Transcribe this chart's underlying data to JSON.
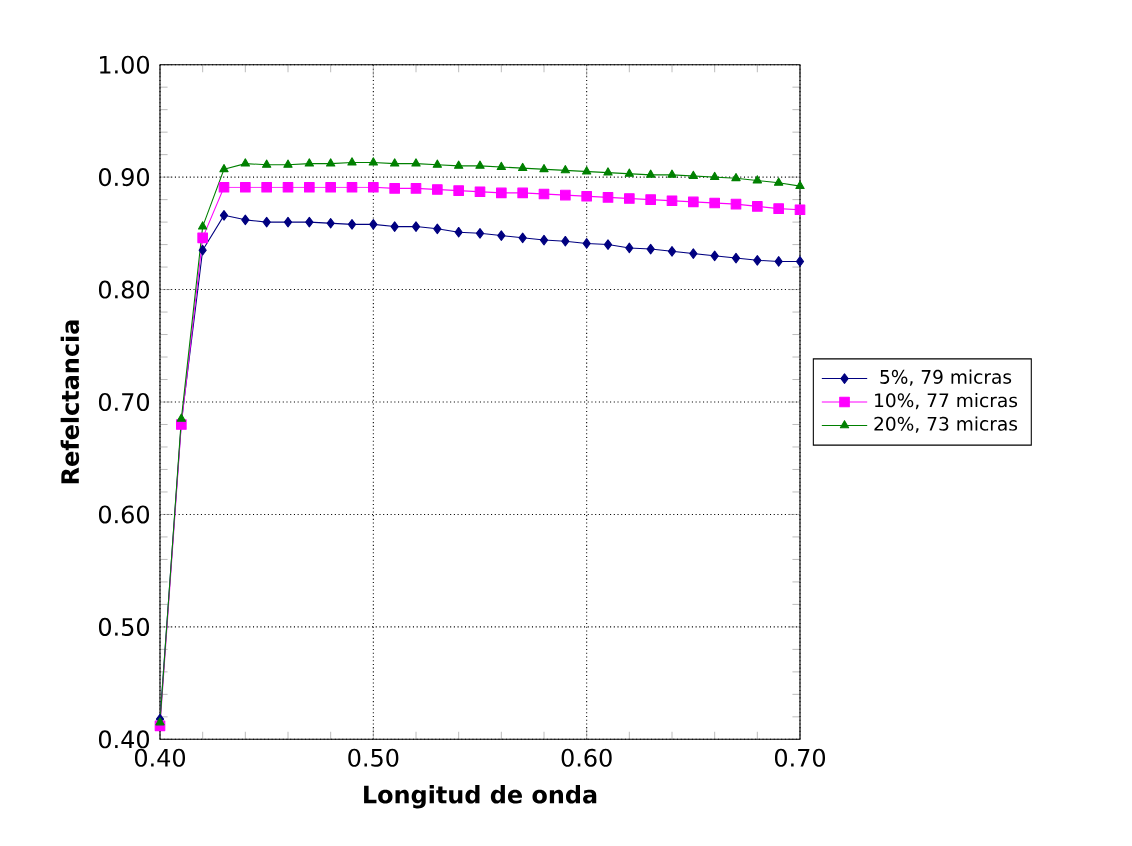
{
  "chart_data": {
    "type": "line",
    "xlabel": "Longitud de onda",
    "ylabel": "Refelctancia",
    "x": [
      0.4,
      0.41,
      0.42,
      0.43,
      0.44,
      0.45,
      0.46,
      0.47,
      0.48,
      0.49,
      0.5,
      0.51,
      0.52,
      0.53,
      0.54,
      0.55,
      0.56,
      0.57,
      0.58,
      0.59,
      0.6,
      0.61,
      0.62,
      0.63,
      0.64,
      0.65,
      0.66,
      0.67,
      0.68,
      0.69,
      0.7
    ],
    "series": [
      {
        "name": "5%, 79 micras",
        "color": "#000080",
        "marker": "diamond",
        "values": [
          0.418,
          0.682,
          0.835,
          0.866,
          0.862,
          0.86,
          0.86,
          0.86,
          0.859,
          0.858,
          0.858,
          0.856,
          0.856,
          0.854,
          0.851,
          0.85,
          0.848,
          0.846,
          0.844,
          0.843,
          0.841,
          0.84,
          0.837,
          0.836,
          0.834,
          0.832,
          0.83,
          0.828,
          0.826,
          0.825,
          0.825
        ]
      },
      {
        "name": "10%, 77  micras",
        "color": "#ff00ff",
        "marker": "square",
        "values": [
          0.412,
          0.68,
          0.846,
          0.891,
          0.891,
          0.891,
          0.891,
          0.891,
          0.891,
          0.891,
          0.891,
          0.89,
          0.89,
          0.889,
          0.888,
          0.887,
          0.886,
          0.886,
          0.885,
          0.884,
          0.883,
          0.882,
          0.881,
          0.88,
          0.879,
          0.878,
          0.877,
          0.876,
          0.874,
          0.872,
          0.871
        ]
      },
      {
        "name": "20%, 73  micras",
        "color": "#008000",
        "marker": "triangle",
        "values": [
          0.415,
          0.685,
          0.856,
          0.907,
          0.912,
          0.911,
          0.911,
          0.912,
          0.912,
          0.913,
          0.913,
          0.912,
          0.912,
          0.911,
          0.91,
          0.91,
          0.909,
          0.908,
          0.907,
          0.906,
          0.905,
          0.904,
          0.903,
          0.902,
          0.902,
          0.901,
          0.9,
          0.899,
          0.897,
          0.895,
          0.892
        ]
      }
    ],
    "xlim": [
      0.4,
      0.7
    ],
    "xticks": [
      {
        "value": 0.4,
        "label": "0.40"
      },
      {
        "value": 0.5,
        "label": "0.50"
      },
      {
        "value": 0.6,
        "label": "0.60"
      },
      {
        "value": 0.7,
        "label": "0.70"
      }
    ],
    "ylim": [
      0.4,
      1.0
    ],
    "yticks": [
      {
        "value": 0.4,
        "label": "0.40"
      },
      {
        "value": 0.5,
        "label": "0.50"
      },
      {
        "value": 0.6,
        "label": "0.60"
      },
      {
        "value": 0.7,
        "label": "0.70"
      },
      {
        "value": 0.8,
        "label": "0.80"
      },
      {
        "value": 0.9,
        "label": "0.90"
      },
      {
        "value": 1.0,
        "label": "1.00"
      }
    ],
    "grid": true,
    "legend": "right",
    "line_style": "solid"
  }
}
